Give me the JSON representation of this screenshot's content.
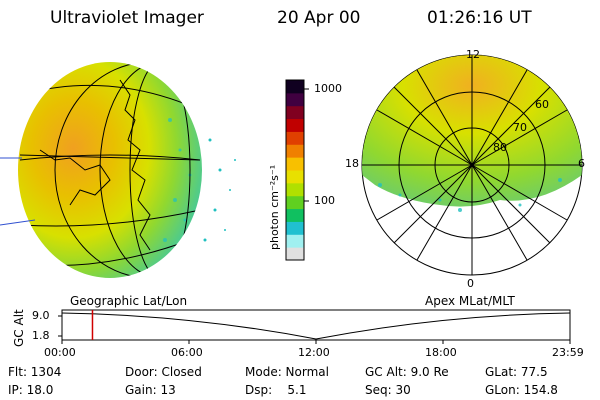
{
  "header": {
    "instrument": "Ultraviolet Imager",
    "date": "20 Apr 00",
    "time": "01:26:16 UT"
  },
  "globe_view": {
    "label": "Geographic Lat/Lon"
  },
  "polar_view": {
    "label": "Apex MLat/MLT",
    "mlt_labels": [
      "12",
      "18",
      "6",
      "0"
    ],
    "mlat_labels": [
      "60",
      "70",
      "80"
    ]
  },
  "colorbar": {
    "unit_label": "photon cm⁻²s⁻¹",
    "tick_labels": [
      "1000",
      "100"
    ],
    "colors": [
      "#e0e0e0",
      "#a0f0f0",
      "#20c0d0",
      "#10c060",
      "#60d020",
      "#b0e000",
      "#e8e000",
      "#f8c000",
      "#f08000",
      "#e04000",
      "#c00000",
      "#800020",
      "#400040",
      "#100020"
    ]
  },
  "timeline": {
    "y_axis_label": "GC Alt",
    "y_ticks": [
      "9.0",
      "1.8"
    ],
    "x_ticks": [
      "00:00",
      "06:00",
      "12:00",
      "18:00",
      "23:59"
    ],
    "marker_time_hours": 1.44,
    "marker_color": "#d00000"
  },
  "footer": {
    "row1": [
      "Flt: 1304",
      "Door: Closed",
      "Mode: Normal",
      "GC Alt: 9.0 Re",
      "GLat: 77.5"
    ],
    "row2": [
      "IP: 18.0",
      "Gain: 13",
      "Dsp:    5.1",
      "Seq: 30",
      "GLon: 154.8"
    ]
  }
}
